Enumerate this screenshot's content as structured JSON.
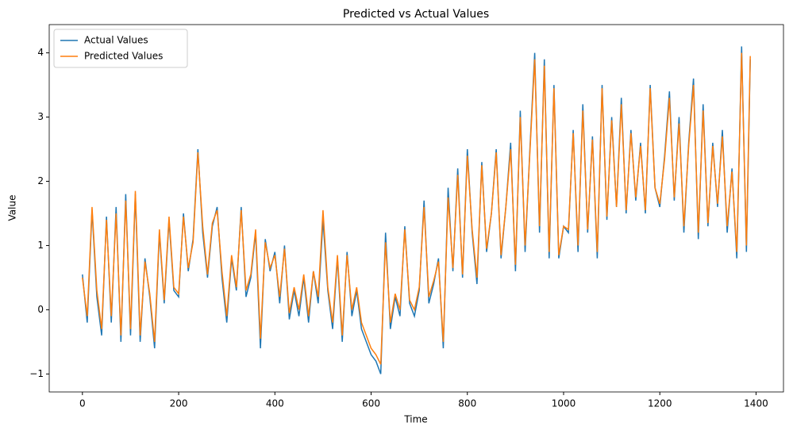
{
  "chart_data": {
    "type": "line",
    "title": "Predicted vs Actual Values",
    "x_label": "Time",
    "y_label": "Value",
    "x": [
      0,
      10,
      20,
      30,
      40,
      50,
      60,
      70,
      80,
      90,
      100,
      110,
      120,
      130,
      140,
      150,
      160,
      170,
      180,
      190,
      200,
      210,
      220,
      230,
      240,
      250,
      260,
      270,
      280,
      290,
      300,
      310,
      320,
      330,
      340,
      350,
      360,
      370,
      380,
      390,
      400,
      410,
      420,
      430,
      440,
      450,
      460,
      470,
      480,
      490,
      500,
      510,
      520,
      530,
      540,
      550,
      560,
      570,
      580,
      590,
      600,
      610,
      620,
      630,
      640,
      650,
      660,
      670,
      680,
      690,
      700,
      710,
      720,
      730,
      740,
      750,
      760,
      770,
      780,
      790,
      800,
      810,
      820,
      830,
      840,
      850,
      860,
      870,
      880,
      890,
      900,
      910,
      920,
      930,
      940,
      950,
      960,
      970,
      980,
      990,
      1000,
      1010,
      1020,
      1030,
      1040,
      1050,
      1060,
      1070,
      1080,
      1090,
      1100,
      1110,
      1120,
      1130,
      1140,
      1150,
      1160,
      1170,
      1180,
      1190,
      1200,
      1210,
      1220,
      1230,
      1240,
      1250,
      1260,
      1270,
      1280,
      1290,
      1300,
      1310,
      1320,
      1330,
      1340,
      1350,
      1360,
      1370,
      1380,
      1388
    ],
    "series": [
      {
        "name": "Actual Values",
        "color": "#1f77b4",
        "values": [
          0.55,
          -0.2,
          1.55,
          0.2,
          -0.4,
          1.45,
          -0.2,
          1.6,
          -0.5,
          1.8,
          -0.4,
          1.8,
          -0.5,
          0.8,
          0.2,
          -0.6,
          1.2,
          0.1,
          1.4,
          0.3,
          0.2,
          1.5,
          0.6,
          1.1,
          2.5,
          1.2,
          0.5,
          1.3,
          1.6,
          0.5,
          -0.2,
          0.8,
          0.3,
          1.6,
          0.2,
          0.5,
          1.2,
          -0.6,
          1.1,
          0.6,
          0.9,
          0.1,
          1.0,
          -0.15,
          0.3,
          -0.1,
          0.5,
          -0.2,
          0.6,
          0.1,
          1.4,
          0.3,
          -0.3,
          0.8,
          -0.5,
          0.9,
          -0.1,
          0.3,
          -0.3,
          -0.5,
          -0.7,
          -0.8,
          -1.0,
          1.2,
          -0.3,
          0.2,
          -0.1,
          1.3,
          0.1,
          -0.1,
          0.3,
          1.7,
          0.1,
          0.4,
          0.8,
          -0.6,
          1.9,
          0.6,
          2.2,
          0.5,
          2.5,
          1.2,
          0.4,
          2.3,
          0.9,
          1.5,
          2.5,
          0.8,
          1.6,
          2.6,
          0.6,
          3.1,
          0.9,
          2.5,
          4.0,
          1.2,
          3.9,
          0.8,
          3.5,
          0.8,
          1.3,
          1.2,
          2.8,
          0.9,
          3.2,
          1.2,
          2.7,
          0.8,
          3.5,
          1.4,
          3.0,
          1.6,
          3.3,
          1.5,
          2.8,
          1.7,
          2.6,
          1.5,
          3.5,
          1.9,
          1.6,
          2.4,
          3.4,
          1.7,
          3.0,
          1.2,
          2.6,
          3.6,
          1.1,
          3.2,
          1.3,
          2.6,
          1.6,
          2.8,
          1.2,
          2.2,
          0.8,
          4.1,
          0.9,
          3.9
        ]
      },
      {
        "name": "Predicted Values",
        "color": "#ff7f0e",
        "values": [
          0.5,
          -0.1,
          1.6,
          0.3,
          -0.3,
          1.4,
          -0.1,
          1.5,
          -0.4,
          1.7,
          -0.3,
          1.85,
          -0.4,
          0.75,
          0.25,
          -0.5,
          1.25,
          0.15,
          1.45,
          0.35,
          0.25,
          1.45,
          0.65,
          1.05,
          2.45,
          1.3,
          0.55,
          1.35,
          1.55,
          0.6,
          -0.1,
          0.85,
          0.35,
          1.55,
          0.3,
          0.55,
          1.25,
          -0.45,
          1.05,
          0.65,
          0.85,
          0.2,
          0.95,
          -0.05,
          0.35,
          0.0,
          0.55,
          -0.1,
          0.6,
          0.2,
          1.55,
          0.35,
          -0.2,
          0.85,
          -0.4,
          0.85,
          0.0,
          0.35,
          -0.2,
          -0.4,
          -0.6,
          -0.7,
          -0.85,
          1.05,
          -0.2,
          0.25,
          0.0,
          1.25,
          0.15,
          0.0,
          0.35,
          1.6,
          0.2,
          0.45,
          0.75,
          -0.5,
          1.75,
          0.65,
          2.1,
          0.55,
          2.4,
          1.25,
          0.5,
          2.25,
          0.95,
          1.5,
          2.45,
          0.85,
          1.6,
          2.5,
          0.7,
          3.0,
          1.0,
          2.45,
          3.9,
          1.3,
          3.8,
          0.9,
          3.45,
          0.85,
          1.3,
          1.25,
          2.75,
          1.0,
          3.1,
          1.25,
          2.65,
          0.9,
          3.45,
          1.45,
          2.95,
          1.6,
          3.2,
          1.55,
          2.75,
          1.75,
          2.55,
          1.55,
          3.45,
          1.9,
          1.65,
          2.35,
          3.3,
          1.75,
          2.9,
          1.3,
          2.55,
          3.5,
          1.2,
          3.1,
          1.35,
          2.55,
          1.65,
          2.7,
          1.3,
          2.15,
          0.9,
          4.0,
          1.0,
          3.95
        ]
      }
    ],
    "xlim": [
      -69,
      1457
    ],
    "xticks": [
      0,
      200,
      400,
      600,
      800,
      1000,
      1200,
      1400
    ],
    "ylim": [
      -1.28,
      4.44
    ],
    "yticks": [
      {
        "value": -1,
        "label": "−1"
      },
      0,
      1,
      2,
      3,
      4
    ],
    "legend": "upper left",
    "grid": false
  }
}
